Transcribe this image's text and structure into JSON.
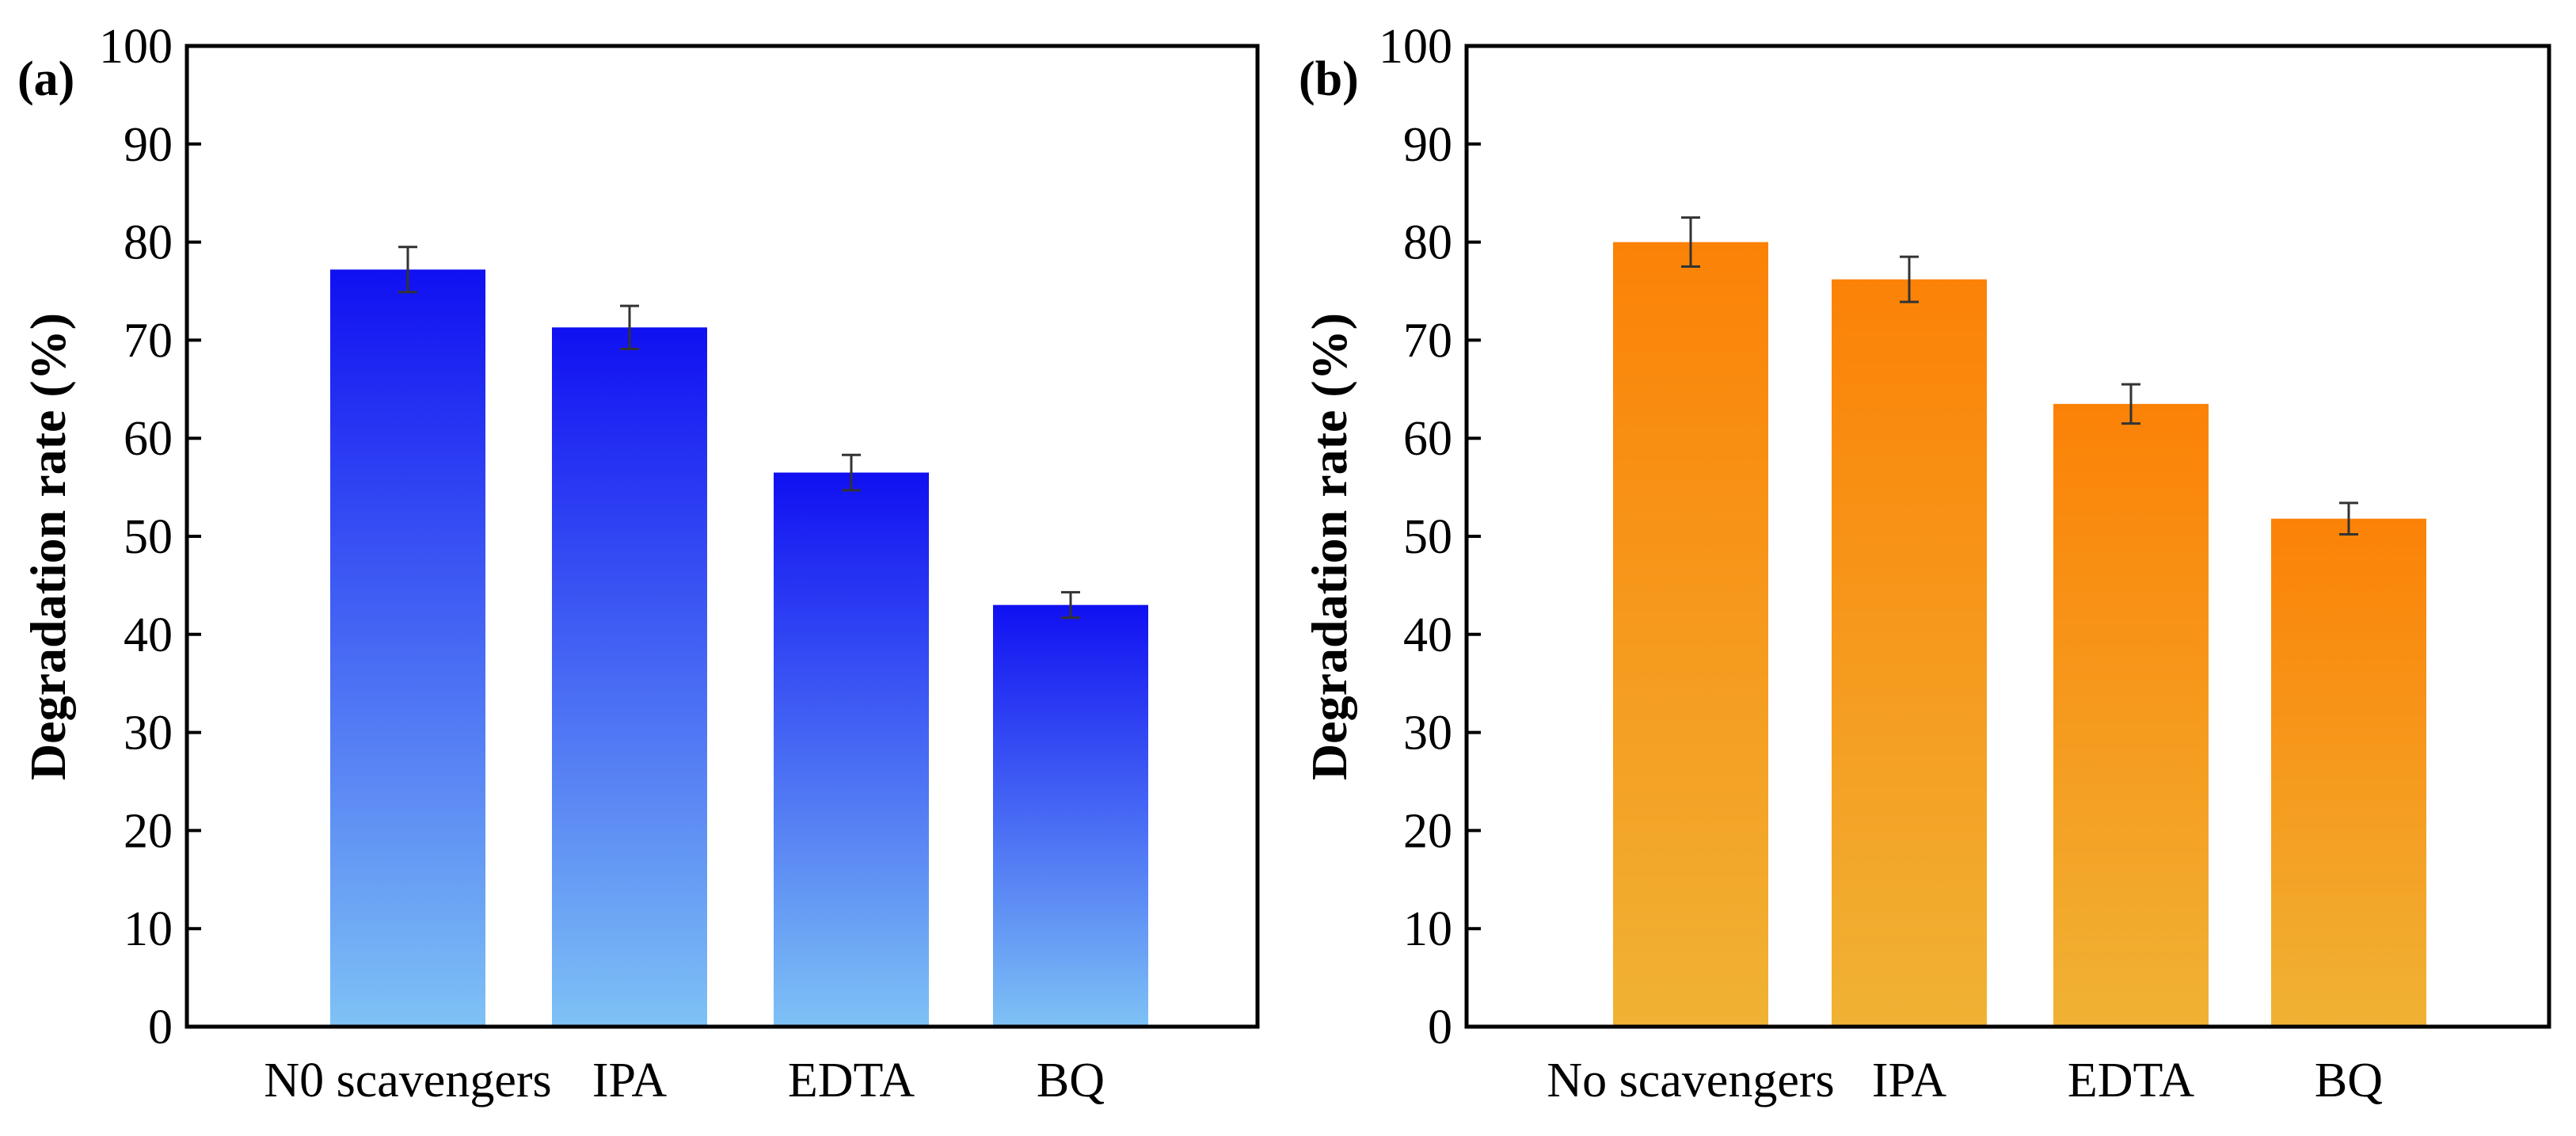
{
  "chart_data": [
    {
      "type": "bar",
      "panel_label": "(a)",
      "title": "",
      "xlabel": "",
      "ylabel": "Degradation rate (%)",
      "ylim": [
        0,
        100
      ],
      "yticks": [
        0,
        10,
        20,
        30,
        40,
        50,
        60,
        70,
        80,
        90,
        100
      ],
      "grid": false,
      "categories": [
        "N0 scavengers",
        "IPA",
        "EDTA",
        "BQ"
      ],
      "values": [
        77.2,
        71.3,
        56.5,
        43.0
      ],
      "errors": [
        2.3,
        2.2,
        1.8,
        1.3
      ],
      "colors": {
        "top": "#1010f2",
        "bottom": "#7ec2f5"
      }
    },
    {
      "type": "bar",
      "panel_label": "(b)",
      "title": "",
      "xlabel": "",
      "ylabel": "Degradation rate (%)",
      "ylim": [
        0,
        100
      ],
      "yticks": [
        0,
        10,
        20,
        30,
        40,
        50,
        60,
        70,
        80,
        90,
        100
      ],
      "grid": false,
      "categories": [
        "No scavengers",
        "IPA",
        "EDTA",
        "BQ"
      ],
      "values": [
        80.0,
        76.2,
        63.5,
        51.8
      ],
      "errors": [
        2.5,
        2.3,
        2.0,
        1.6
      ],
      "colors": {
        "top": "#fb8207",
        "bottom": "#f0b234"
      }
    }
  ]
}
